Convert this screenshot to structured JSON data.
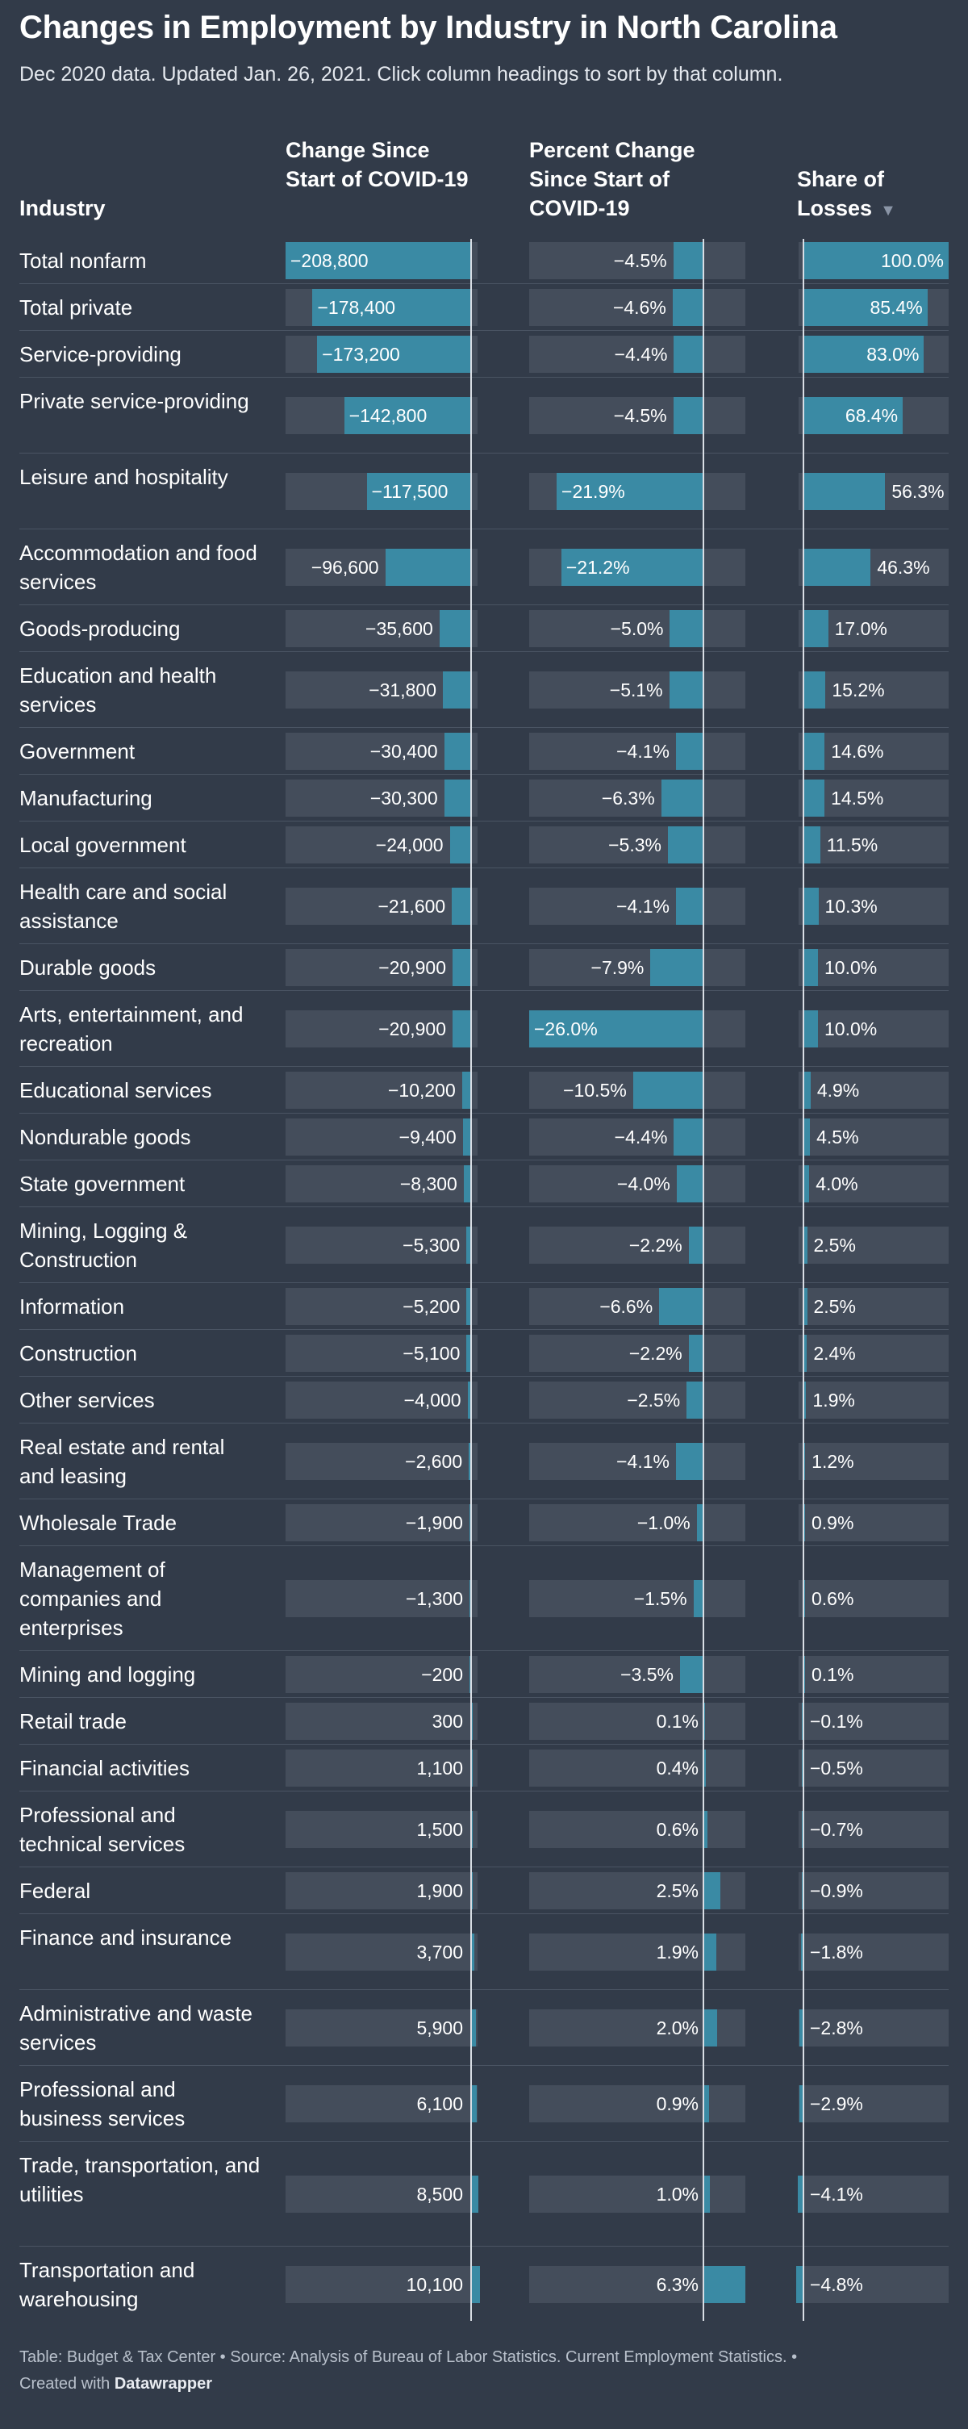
{
  "title": "Changes in Employment by Industry in North Carolina",
  "subtitle": "Dec 2020 data. Updated Jan. 26, 2021. Click column headings to sort by that column.",
  "headers": {
    "industry": "Industry",
    "change": "Change Since Start of COVID-19",
    "percent": "Percent Change Since Start of COVID-19",
    "share": "Share of Losses",
    "sort_icon": "▼"
  },
  "colors": {
    "background": "#323b49",
    "bar": "#3a8aa4",
    "track": "#444d5b"
  },
  "chart_data": {
    "type": "table",
    "sorted_by": "Share of Losses",
    "sort_direction": "descending",
    "columns": [
      "Industry",
      "Change Since Start of COVID-19",
      "Percent Change Since Start of COVID-19",
      "Share of Losses"
    ],
    "rows": [
      {
        "industry": "Total nonfarm",
        "change": -208800,
        "change_text": "−208,800",
        "percent": -4.5,
        "percent_text": "−4.5%",
        "share": 100.0,
        "share_text": "100.0%"
      },
      {
        "industry": "Total private",
        "change": -178400,
        "change_text": "−178,400",
        "percent": -4.6,
        "percent_text": "−4.6%",
        "share": 85.4,
        "share_text": "85.4%"
      },
      {
        "industry": "Service-providing",
        "change": -173200,
        "change_text": "−173,200",
        "percent": -4.4,
        "percent_text": "−4.4%",
        "share": 83.0,
        "share_text": "83.0%"
      },
      {
        "industry": "Private service-providing",
        "change": -142800,
        "change_text": "−142,800",
        "percent": -4.5,
        "percent_text": "−4.5%",
        "share": 68.4,
        "share_text": "68.4%"
      },
      {
        "industry": "Leisure and hospitality",
        "change": -117500,
        "change_text": "−117,500",
        "percent": -21.9,
        "percent_text": "−21.9%",
        "share": 56.3,
        "share_text": "56.3%"
      },
      {
        "industry": "Accommodation and food services",
        "change": -96600,
        "change_text": "−96,600",
        "percent": -21.2,
        "percent_text": "−21.2%",
        "share": 46.3,
        "share_text": "46.3%"
      },
      {
        "industry": "Goods-producing",
        "change": -35600,
        "change_text": "−35,600",
        "percent": -5.0,
        "percent_text": "−5.0%",
        "share": 17.0,
        "share_text": "17.0%"
      },
      {
        "industry": "Education and health services",
        "change": -31800,
        "change_text": "−31,800",
        "percent": -5.1,
        "percent_text": "−5.1%",
        "share": 15.2,
        "share_text": "15.2%"
      },
      {
        "industry": "Government",
        "change": -30400,
        "change_text": "−30,400",
        "percent": -4.1,
        "percent_text": "−4.1%",
        "share": 14.6,
        "share_text": "14.6%"
      },
      {
        "industry": "Manufacturing",
        "change": -30300,
        "change_text": "−30,300",
        "percent": -6.3,
        "percent_text": "−6.3%",
        "share": 14.5,
        "share_text": "14.5%"
      },
      {
        "industry": "Local government",
        "change": -24000,
        "change_text": "−24,000",
        "percent": -5.3,
        "percent_text": "−5.3%",
        "share": 11.5,
        "share_text": "11.5%"
      },
      {
        "industry": "Health care and social assistance",
        "change": -21600,
        "change_text": "−21,600",
        "percent": -4.1,
        "percent_text": "−4.1%",
        "share": 10.3,
        "share_text": "10.3%"
      },
      {
        "industry": "Durable goods",
        "change": -20900,
        "change_text": "−20,900",
        "percent": -7.9,
        "percent_text": "−7.9%",
        "share": 10.0,
        "share_text": "10.0%"
      },
      {
        "industry": "Arts, entertainment, and recreation",
        "change": -20900,
        "change_text": "−20,900",
        "percent": -26.0,
        "percent_text": "−26.0%",
        "share": 10.0,
        "share_text": "10.0%"
      },
      {
        "industry": "Educational services",
        "change": -10200,
        "change_text": "−10,200",
        "percent": -10.5,
        "percent_text": "−10.5%",
        "share": 4.9,
        "share_text": "4.9%"
      },
      {
        "industry": "Nondurable goods",
        "change": -9400,
        "change_text": "−9,400",
        "percent": -4.4,
        "percent_text": "−4.4%",
        "share": 4.5,
        "share_text": "4.5%"
      },
      {
        "industry": "State government",
        "change": -8300,
        "change_text": "−8,300",
        "percent": -4.0,
        "percent_text": "−4.0%",
        "share": 4.0,
        "share_text": "4.0%"
      },
      {
        "industry": "Mining, Logging & Construction",
        "change": -5300,
        "change_text": "−5,300",
        "percent": -2.2,
        "percent_text": "−2.2%",
        "share": 2.5,
        "share_text": "2.5%"
      },
      {
        "industry": "Information",
        "change": -5200,
        "change_text": "−5,200",
        "percent": -6.6,
        "percent_text": "−6.6%",
        "share": 2.5,
        "share_text": "2.5%"
      },
      {
        "industry": "Construction",
        "change": -5100,
        "change_text": "−5,100",
        "percent": -2.2,
        "percent_text": "−2.2%",
        "share": 2.4,
        "share_text": "2.4%"
      },
      {
        "industry": "Other services",
        "change": -4000,
        "change_text": "−4,000",
        "percent": -2.5,
        "percent_text": "−2.5%",
        "share": 1.9,
        "share_text": "1.9%"
      },
      {
        "industry": "Real estate and rental and leasing",
        "change": -2600,
        "change_text": "−2,600",
        "percent": -4.1,
        "percent_text": "−4.1%",
        "share": 1.2,
        "share_text": "1.2%"
      },
      {
        "industry": "Wholesale Trade",
        "change": -1900,
        "change_text": "−1,900",
        "percent": -1.0,
        "percent_text": "−1.0%",
        "share": 0.9,
        "share_text": "0.9%"
      },
      {
        "industry": "Management of companies and enterprises",
        "change": -1300,
        "change_text": "−1,300",
        "percent": -1.5,
        "percent_text": "−1.5%",
        "share": 0.6,
        "share_text": "0.6%"
      },
      {
        "industry": "Mining and logging",
        "change": -200,
        "change_text": "−200",
        "percent": -3.5,
        "percent_text": "−3.5%",
        "share": 0.1,
        "share_text": "0.1%"
      },
      {
        "industry": "Retail trade",
        "change": 300,
        "change_text": "300",
        "percent": 0.1,
        "percent_text": "0.1%",
        "share": -0.1,
        "share_text": "−0.1%"
      },
      {
        "industry": "Financial activities",
        "change": 1100,
        "change_text": "1,100",
        "percent": 0.4,
        "percent_text": "0.4%",
        "share": -0.5,
        "share_text": "−0.5%"
      },
      {
        "industry": "Professional and technical services",
        "change": 1500,
        "change_text": "1,500",
        "percent": 0.6,
        "percent_text": "0.6%",
        "share": -0.7,
        "share_text": "−0.7%"
      },
      {
        "industry": "Federal",
        "change": 1900,
        "change_text": "1,900",
        "percent": 2.5,
        "percent_text": "2.5%",
        "share": -0.9,
        "share_text": "−0.9%"
      },
      {
        "industry": "Finance and insurance",
        "change": 3700,
        "change_text": "3,700",
        "percent": 1.9,
        "percent_text": "1.9%",
        "share": -1.8,
        "share_text": "−1.8%"
      },
      {
        "industry": "Administrative and waste services",
        "change": 5900,
        "change_text": "5,900",
        "percent": 2.0,
        "percent_text": "2.0%",
        "share": -2.8,
        "share_text": "−2.8%"
      },
      {
        "industry": "Professional and business services",
        "change": 6100,
        "change_text": "6,100",
        "percent": 0.9,
        "percent_text": "0.9%",
        "share": -2.9,
        "share_text": "−2.9%"
      },
      {
        "industry": "Trade, transportation, and utilities",
        "change": 8500,
        "change_text": "8,500",
        "percent": 1.0,
        "percent_text": "1.0%",
        "share": -4.1,
        "share_text": "−4.1%"
      },
      {
        "industry": "Transportation and warehousing",
        "change": 10100,
        "change_text": "10,100",
        "percent": 6.3,
        "percent_text": "6.3%",
        "share": -4.8,
        "share_text": "−4.8%"
      }
    ]
  },
  "footer": {
    "notes": "Table: Budget & Tax Center • Source: Analysis of Bureau of Labor Statistics. Current Employment Statistics. •",
    "created_with": "Created with",
    "brand": "Datawrapper"
  }
}
